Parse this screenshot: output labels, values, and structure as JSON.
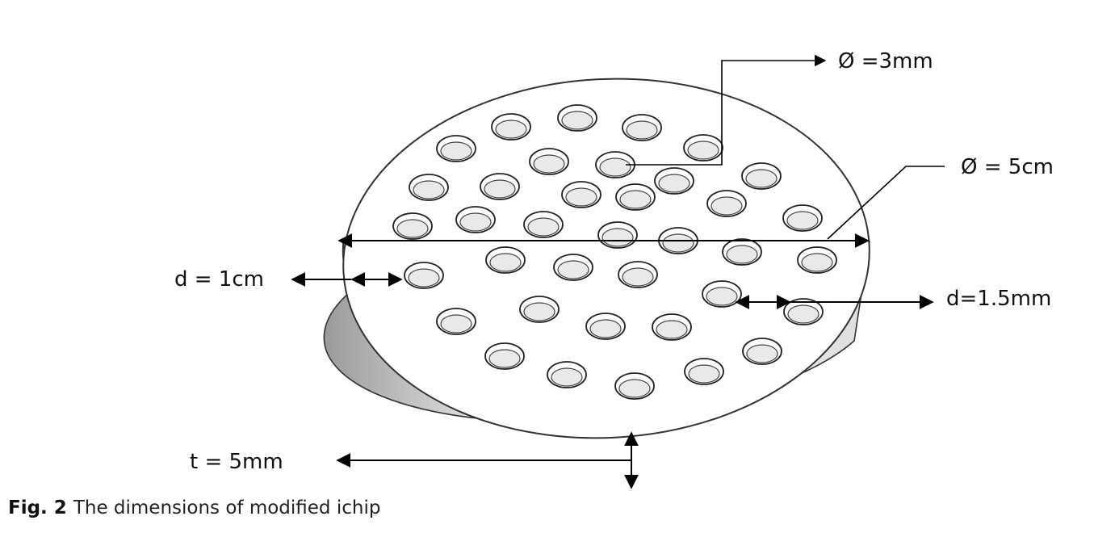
{
  "diagram": {
    "labels": {
      "hole_diameter": "Ø =3mm",
      "disk_diameter": "Ø = 5cm",
      "edge_distance": "d = 1cm",
      "hole_spacing": "d=1.5mm",
      "thickness": "t = 5mm"
    }
  },
  "caption": {
    "figure_number": "Fig. 2",
    "text": "The dimensions of modified ichip"
  }
}
